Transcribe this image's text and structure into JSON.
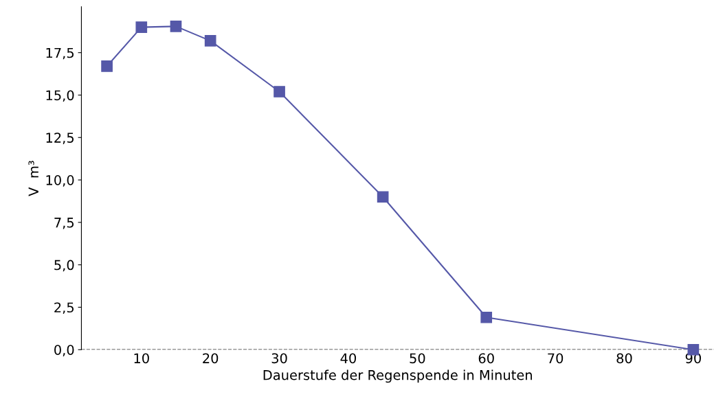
{
  "chart_data": {
    "type": "line",
    "xlabel": "Dauerstufe der Regenspende in Minuten",
    "ylabel": "V  m³",
    "series": [
      {
        "color": "#5558a8",
        "x": [
          5,
          10,
          15,
          20,
          30,
          45,
          60,
          90
        ],
        "values": [
          16.7,
          19.0,
          19.05,
          18.2,
          15.2,
          9.0,
          1.9,
          0.0
        ]
      }
    ],
    "xlim": [
      1.3,
      93
    ],
    "ylim": [
      0,
      20.2
    ],
    "xticks": [
      10,
      20,
      30,
      40,
      50,
      60,
      70,
      80,
      90
    ],
    "yticks": [
      {
        "value": 0,
        "label": "0,0"
      },
      {
        "value": 2.5,
        "label": "2,5"
      },
      {
        "value": 5,
        "label": "5,0"
      },
      {
        "value": 7.5,
        "label": "7,5"
      },
      {
        "value": 10,
        "label": "10,0"
      },
      {
        "value": 12.5,
        "label": "12,5"
      },
      {
        "value": 15,
        "label": "15,0"
      },
      {
        "value": 17.5,
        "label": "17,5"
      }
    ],
    "ref_lines": [
      {
        "axis": "y",
        "value": 0,
        "color": "#333333",
        "line_style": "dashed"
      }
    ],
    "marker": "square",
    "line_style": "solid"
  }
}
